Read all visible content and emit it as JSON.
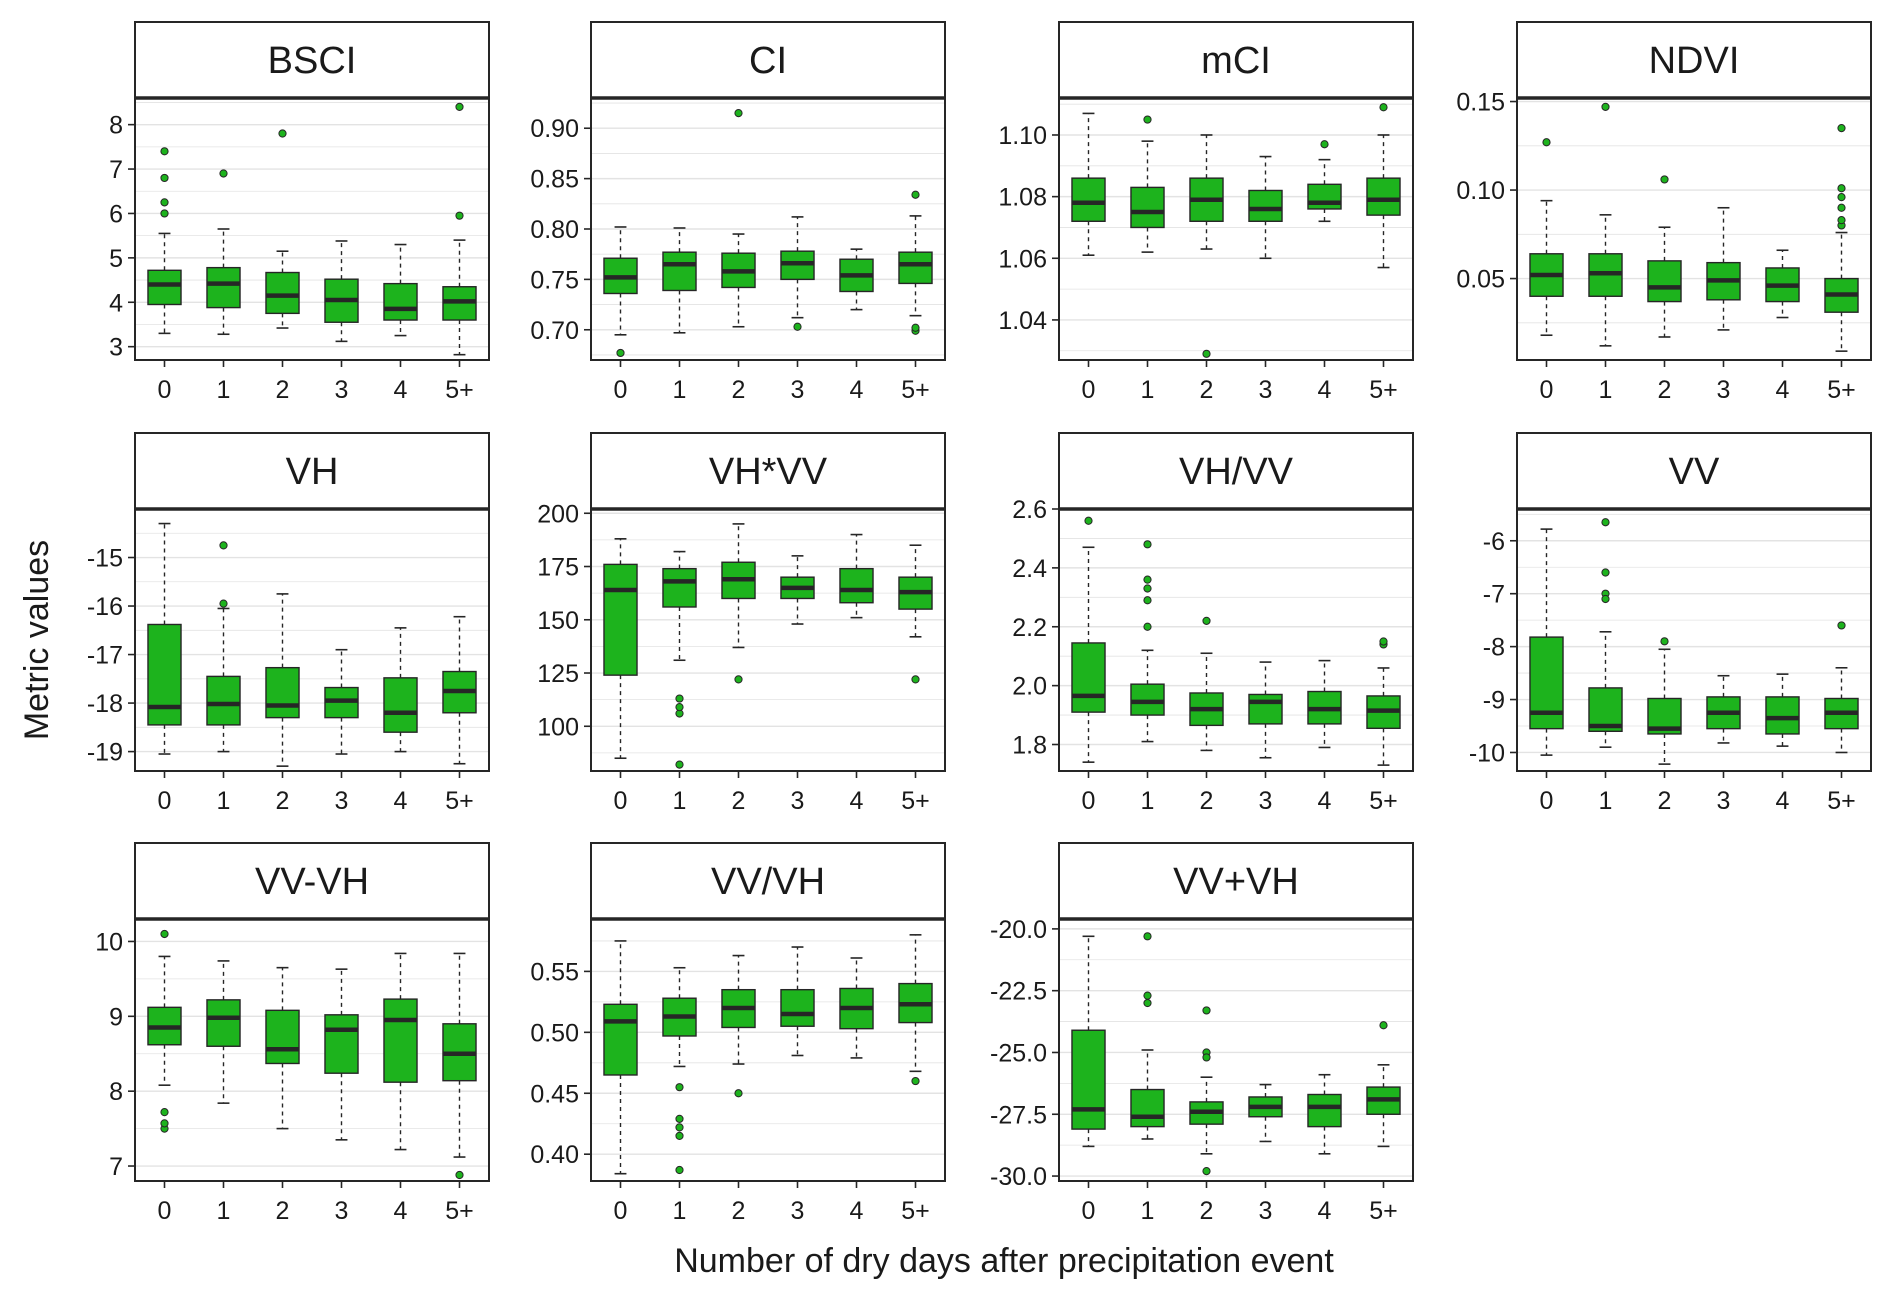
{
  "figure": {
    "xlabel": "Number of dry days after precipitation event",
    "ylabel": "Metric values"
  },
  "colors": {
    "box_fill": "#1db31d",
    "stroke": "#262626",
    "grid": "#e3e3e3",
    "outlier": "#1db31d"
  },
  "chart_data": [
    {
      "type": "box",
      "title": "BSCI",
      "categories": [
        "0",
        "1",
        "2",
        "3",
        "4",
        "5+"
      ],
      "ylim": [
        2.7,
        8.6
      ],
      "yticks": [
        3,
        4,
        5,
        6,
        7,
        8
      ],
      "boxes": [
        {
          "whislo": 3.3,
          "q1": 3.95,
          "med": 4.4,
          "q3": 4.72,
          "whishi": 5.55,
          "outliers": [
            6.0,
            6.25,
            6.8,
            7.4
          ]
        },
        {
          "whislo": 3.28,
          "q1": 3.88,
          "med": 4.42,
          "q3": 4.78,
          "whishi": 5.65,
          "outliers": [
            6.9
          ]
        },
        {
          "whislo": 3.42,
          "q1": 3.75,
          "med": 4.15,
          "q3": 4.67,
          "whishi": 5.15,
          "outliers": [
            7.8
          ]
        },
        {
          "whislo": 3.12,
          "q1": 3.55,
          "med": 4.05,
          "q3": 4.52,
          "whishi": 5.38,
          "outliers": []
        },
        {
          "whislo": 3.25,
          "q1": 3.6,
          "med": 3.85,
          "q3": 4.42,
          "whishi": 5.3,
          "outliers": []
        },
        {
          "whislo": 2.82,
          "q1": 3.6,
          "med": 4.02,
          "q3": 4.35,
          "whishi": 5.4,
          "outliers": [
            5.95,
            8.4
          ]
        }
      ]
    },
    {
      "type": "box",
      "title": "CI",
      "categories": [
        "0",
        "1",
        "2",
        "3",
        "4",
        "5+"
      ],
      "ylim": [
        0.67,
        0.93
      ],
      "yticks": [
        0.7,
        0.75,
        0.8,
        0.85,
        0.9
      ],
      "boxes": [
        {
          "whislo": 0.695,
          "q1": 0.736,
          "med": 0.752,
          "q3": 0.771,
          "whishi": 0.802,
          "outliers": [
            0.677
          ]
        },
        {
          "whislo": 0.697,
          "q1": 0.739,
          "med": 0.765,
          "q3": 0.777,
          "whishi": 0.801,
          "outliers": []
        },
        {
          "whislo": 0.703,
          "q1": 0.742,
          "med": 0.758,
          "q3": 0.776,
          "whishi": 0.795,
          "outliers": [
            0.915
          ]
        },
        {
          "whislo": 0.712,
          "q1": 0.75,
          "med": 0.766,
          "q3": 0.778,
          "whishi": 0.812,
          "outliers": [
            0.703
          ]
        },
        {
          "whislo": 0.72,
          "q1": 0.738,
          "med": 0.754,
          "q3": 0.77,
          "whishi": 0.78,
          "outliers": []
        },
        {
          "whislo": 0.714,
          "q1": 0.746,
          "med": 0.765,
          "q3": 0.777,
          "whishi": 0.813,
          "outliers": [
            0.699,
            0.702,
            0.834
          ]
        }
      ]
    },
    {
      "type": "box",
      "title": "mCI",
      "categories": [
        "0",
        "1",
        "2",
        "3",
        "4",
        "5+"
      ],
      "ylim": [
        1.027,
        1.112
      ],
      "yticks": [
        1.04,
        1.06,
        1.08,
        1.1
      ],
      "boxes": [
        {
          "whislo": 1.061,
          "q1": 1.072,
          "med": 1.078,
          "q3": 1.086,
          "whishi": 1.107,
          "outliers": []
        },
        {
          "whislo": 1.062,
          "q1": 1.07,
          "med": 1.075,
          "q3": 1.083,
          "whishi": 1.098,
          "outliers": [
            1.105
          ]
        },
        {
          "whislo": 1.063,
          "q1": 1.072,
          "med": 1.079,
          "q3": 1.086,
          "whishi": 1.1,
          "outliers": [
            1.029
          ]
        },
        {
          "whislo": 1.06,
          "q1": 1.072,
          "med": 1.076,
          "q3": 1.082,
          "whishi": 1.093,
          "outliers": []
        },
        {
          "whislo": 1.072,
          "q1": 1.076,
          "med": 1.078,
          "q3": 1.084,
          "whishi": 1.092,
          "outliers": [
            1.097
          ]
        },
        {
          "whislo": 1.057,
          "q1": 1.074,
          "med": 1.079,
          "q3": 1.086,
          "whishi": 1.1,
          "outliers": [
            1.109
          ]
        }
      ]
    },
    {
      "type": "box",
      "title": "NDVI",
      "categories": [
        "0",
        "1",
        "2",
        "3",
        "4",
        "5+"
      ],
      "ylim": [
        0.004,
        0.152
      ],
      "yticks": [
        0.05,
        0.1,
        0.15
      ],
      "boxes": [
        {
          "whislo": 0.018,
          "q1": 0.04,
          "med": 0.052,
          "q3": 0.064,
          "whishi": 0.094,
          "outliers": [
            0.127
          ]
        },
        {
          "whislo": 0.012,
          "q1": 0.04,
          "med": 0.053,
          "q3": 0.064,
          "whishi": 0.086,
          "outliers": [
            0.147
          ]
        },
        {
          "whislo": 0.017,
          "q1": 0.037,
          "med": 0.045,
          "q3": 0.06,
          "whishi": 0.079,
          "outliers": [
            0.106
          ]
        },
        {
          "whislo": 0.021,
          "q1": 0.038,
          "med": 0.049,
          "q3": 0.059,
          "whishi": 0.09,
          "outliers": []
        },
        {
          "whislo": 0.028,
          "q1": 0.037,
          "med": 0.046,
          "q3": 0.056,
          "whishi": 0.066,
          "outliers": []
        },
        {
          "whislo": 0.009,
          "q1": 0.031,
          "med": 0.041,
          "q3": 0.05,
          "whishi": 0.076,
          "outliers": [
            0.08,
            0.083,
            0.09,
            0.096,
            0.101,
            0.135
          ]
        }
      ]
    },
    {
      "type": "box",
      "title": "VH",
      "categories": [
        "0",
        "1",
        "2",
        "3",
        "4",
        "5+"
      ],
      "ylim": [
        -19.4,
        -14.0
      ],
      "yticks": [
        -19,
        -18,
        -17,
        -16,
        -15
      ],
      "boxes": [
        {
          "whislo": -19.05,
          "q1": -18.45,
          "med": -18.08,
          "q3": -16.38,
          "whishi": -14.3,
          "outliers": []
        },
        {
          "whislo": -19.0,
          "q1": -18.45,
          "med": -18.02,
          "q3": -17.45,
          "whishi": -16.05,
          "outliers": [
            -14.75,
            -15.95
          ]
        },
        {
          "whislo": -19.3,
          "q1": -18.3,
          "med": -18.05,
          "q3": -17.27,
          "whishi": -15.75,
          "outliers": []
        },
        {
          "whislo": -19.05,
          "q1": -18.3,
          "med": -17.95,
          "q3": -17.68,
          "whishi": -16.9,
          "outliers": []
        },
        {
          "whislo": -19.0,
          "q1": -18.6,
          "med": -18.2,
          "q3": -17.48,
          "whishi": -16.45,
          "outliers": []
        },
        {
          "whislo": -19.25,
          "q1": -18.2,
          "med": -17.75,
          "q3": -17.35,
          "whishi": -16.22,
          "outliers": []
        }
      ]
    },
    {
      "type": "box",
      "title": "VH*VV",
      "categories": [
        "0",
        "1",
        "2",
        "3",
        "4",
        "5+"
      ],
      "ylim": [
        79,
        202
      ],
      "yticks": [
        100,
        125,
        150,
        175,
        200
      ],
      "boxes": [
        {
          "whislo": 85,
          "q1": 124,
          "med": 164,
          "q3": 176,
          "whishi": 188,
          "outliers": []
        },
        {
          "whislo": 131,
          "q1": 156,
          "med": 168,
          "q3": 174,
          "whishi": 182,
          "outliers": [
            82,
            106,
            109,
            113
          ]
        },
        {
          "whislo": 137,
          "q1": 160,
          "med": 169,
          "q3": 177,
          "whishi": 195,
          "outliers": [
            122
          ]
        },
        {
          "whislo": 148,
          "q1": 160,
          "med": 165,
          "q3": 170,
          "whishi": 180,
          "outliers": []
        },
        {
          "whislo": 151,
          "q1": 158,
          "med": 164,
          "q3": 174,
          "whishi": 190,
          "outliers": []
        },
        {
          "whislo": 142,
          "q1": 155,
          "med": 163,
          "q3": 170,
          "whishi": 185,
          "outliers": [
            122
          ]
        }
      ]
    },
    {
      "type": "box",
      "title": "VH/VV",
      "categories": [
        "0",
        "1",
        "2",
        "3",
        "4",
        "5+"
      ],
      "ylim": [
        1.71,
        2.6
      ],
      "yticks": [
        1.8,
        2.0,
        2.2,
        2.4,
        2.6
      ],
      "boxes": [
        {
          "whislo": 1.74,
          "q1": 1.91,
          "med": 1.965,
          "q3": 2.145,
          "whishi": 2.47,
          "outliers": [
            2.56
          ]
        },
        {
          "whislo": 1.81,
          "q1": 1.9,
          "med": 1.945,
          "q3": 2.005,
          "whishi": 2.12,
          "outliers": [
            2.2,
            2.29,
            2.33,
            2.36,
            2.48
          ]
        },
        {
          "whislo": 1.78,
          "q1": 1.865,
          "med": 1.92,
          "q3": 1.975,
          "whishi": 2.11,
          "outliers": [
            2.22
          ]
        },
        {
          "whislo": 1.755,
          "q1": 1.87,
          "med": 1.945,
          "q3": 1.97,
          "whishi": 2.08,
          "outliers": []
        },
        {
          "whislo": 1.79,
          "q1": 1.87,
          "med": 1.92,
          "q3": 1.98,
          "whishi": 2.085,
          "outliers": []
        },
        {
          "whislo": 1.73,
          "q1": 1.855,
          "med": 1.915,
          "q3": 1.965,
          "whishi": 2.06,
          "outliers": [
            2.14,
            2.15
          ]
        }
      ]
    },
    {
      "type": "box",
      "title": "VV",
      "categories": [
        "0",
        "1",
        "2",
        "3",
        "4",
        "5+"
      ],
      "ylim": [
        -10.35,
        -5.4
      ],
      "yticks": [
        -10,
        -9,
        -8,
        -7,
        -6
      ],
      "boxes": [
        {
          "whislo": -10.05,
          "q1": -9.55,
          "med": -9.25,
          "q3": -7.82,
          "whishi": -5.78,
          "outliers": []
        },
        {
          "whislo": -9.9,
          "q1": -9.6,
          "med": -9.5,
          "q3": -8.78,
          "whishi": -7.72,
          "outliers": [
            -5.65,
            -6.6,
            -7.0,
            -7.1
          ]
        },
        {
          "whislo": -10.22,
          "q1": -9.65,
          "med": -9.55,
          "q3": -8.98,
          "whishi": -8.05,
          "outliers": [
            -7.9
          ]
        },
        {
          "whislo": -9.82,
          "q1": -9.55,
          "med": -9.25,
          "q3": -8.95,
          "whishi": -8.55,
          "outliers": []
        },
        {
          "whislo": -9.88,
          "q1": -9.65,
          "med": -9.35,
          "q3": -8.95,
          "whishi": -8.52,
          "outliers": []
        },
        {
          "whislo": -10.0,
          "q1": -9.55,
          "med": -9.25,
          "q3": -8.98,
          "whishi": -8.4,
          "outliers": [
            -7.6
          ]
        }
      ]
    },
    {
      "type": "box",
      "title": "VV-VH",
      "categories": [
        "0",
        "1",
        "2",
        "3",
        "4",
        "5+"
      ],
      "ylim": [
        6.8,
        10.3
      ],
      "yticks": [
        7,
        8,
        9,
        10
      ],
      "boxes": [
        {
          "whislo": 8.08,
          "q1": 8.62,
          "med": 8.85,
          "q3": 9.12,
          "whishi": 9.8,
          "outliers": [
            7.5,
            7.57,
            7.72,
            10.1
          ]
        },
        {
          "whislo": 7.84,
          "q1": 8.6,
          "med": 8.98,
          "q3": 9.22,
          "whishi": 9.74,
          "outliers": []
        },
        {
          "whislo": 7.5,
          "q1": 8.37,
          "med": 8.56,
          "q3": 9.08,
          "whishi": 9.65,
          "outliers": []
        },
        {
          "whislo": 7.35,
          "q1": 8.24,
          "med": 8.82,
          "q3": 9.02,
          "whishi": 9.63,
          "outliers": []
        },
        {
          "whislo": 7.22,
          "q1": 8.12,
          "med": 8.95,
          "q3": 9.23,
          "whishi": 9.84,
          "outliers": []
        },
        {
          "whislo": 7.12,
          "q1": 8.14,
          "med": 8.5,
          "q3": 8.9,
          "whishi": 9.84,
          "outliers": [
            6.88
          ]
        }
      ]
    },
    {
      "type": "box",
      "title": "VV/VH",
      "categories": [
        "0",
        "1",
        "2",
        "3",
        "4",
        "5+"
      ],
      "ylim": [
        0.378,
        0.593
      ],
      "yticks": [
        0.4,
        0.45,
        0.5,
        0.55
      ],
      "boxes": [
        {
          "whislo": 0.384,
          "q1": 0.465,
          "med": 0.509,
          "q3": 0.523,
          "whishi": 0.575,
          "outliers": []
        },
        {
          "whislo": 0.472,
          "q1": 0.497,
          "med": 0.513,
          "q3": 0.528,
          "whishi": 0.553,
          "outliers": [
            0.387,
            0.415,
            0.422,
            0.429,
            0.455
          ]
        },
        {
          "whislo": 0.474,
          "q1": 0.504,
          "med": 0.52,
          "q3": 0.535,
          "whishi": 0.563,
          "outliers": [
            0.45
          ]
        },
        {
          "whislo": 0.481,
          "q1": 0.505,
          "med": 0.515,
          "q3": 0.535,
          "whishi": 0.57,
          "outliers": []
        },
        {
          "whislo": 0.479,
          "q1": 0.503,
          "med": 0.52,
          "q3": 0.536,
          "whishi": 0.561,
          "outliers": []
        },
        {
          "whislo": 0.468,
          "q1": 0.508,
          "med": 0.523,
          "q3": 0.54,
          "whishi": 0.58,
          "outliers": [
            0.46
          ]
        }
      ]
    },
    {
      "type": "box",
      "title": "VV+VH",
      "categories": [
        "0",
        "1",
        "2",
        "3",
        "4",
        "5+"
      ],
      "ylim": [
        -30.2,
        -19.6
      ],
      "yticks": [
        -30.0,
        -27.5,
        -25.0,
        -22.5,
        -20.0
      ],
      "boxes": [
        {
          "whislo": -28.8,
          "q1": -28.1,
          "med": -27.3,
          "q3": -24.1,
          "whishi": -20.3,
          "outliers": []
        },
        {
          "whislo": -28.5,
          "q1": -28.0,
          "med": -27.6,
          "q3": -26.5,
          "whishi": -24.9,
          "outliers": [
            -20.3,
            -22.7,
            -23.0
          ]
        },
        {
          "whislo": -29.1,
          "q1": -27.9,
          "med": -27.4,
          "q3": -27.0,
          "whishi": -26.0,
          "outliers": [
            -23.3,
            -25.0,
            -25.2,
            -29.8
          ]
        },
        {
          "whislo": -28.6,
          "q1": -27.6,
          "med": -27.2,
          "q3": -26.8,
          "whishi": -26.3,
          "outliers": []
        },
        {
          "whislo": -29.1,
          "q1": -28.0,
          "med": -27.2,
          "q3": -26.7,
          "whishi": -25.9,
          "outliers": []
        },
        {
          "whislo": -28.8,
          "q1": -27.5,
          "med": -26.9,
          "q3": -26.4,
          "whishi": -25.5,
          "outliers": [
            -23.9
          ]
        }
      ]
    }
  ]
}
